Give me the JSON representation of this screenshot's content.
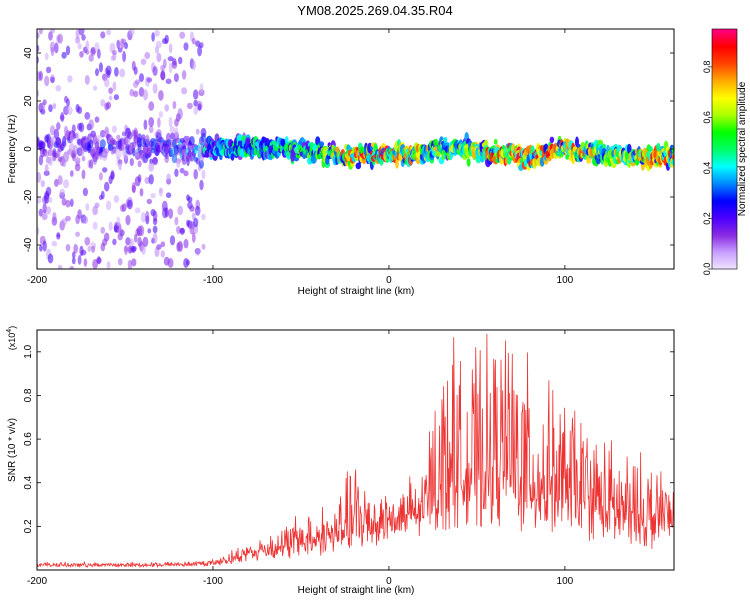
{
  "title": "YM08.2025.269.04.35.R04",
  "chart_data": [
    {
      "type": "heatmap",
      "name": "spectrogram",
      "xlabel": "Height of straight line (km)",
      "ylabel": "Frequency (Hz)",
      "xlim": [
        -200,
        162
      ],
      "ylim": [
        -50,
        50
      ],
      "x_ticks": [
        -200,
        -100,
        0,
        100
      ],
      "x_tick_labels": [
        "-200",
        "-100",
        "0",
        "100"
      ],
      "y_ticks": [
        -40,
        -20,
        0,
        20,
        40
      ],
      "y_tick_labels": [
        "-40",
        "-20",
        "0",
        "20",
        "40"
      ],
      "ridge": {
        "x": [
          -200,
          -150,
          -100,
          -80,
          -60,
          -40,
          -20,
          0,
          20,
          40,
          60,
          80,
          100,
          120,
          140,
          162
        ],
        "frequency": [
          2,
          1,
          0,
          1,
          0,
          -1,
          -3,
          -2,
          -1,
          0,
          -2,
          -3,
          0,
          -2,
          -3,
          -3
        ],
        "amplitude": [
          0.25,
          0.3,
          0.45,
          0.55,
          0.55,
          0.6,
          0.85,
          0.9,
          0.75,
          0.6,
          0.85,
          0.9,
          0.85,
          0.7,
          0.8,
          0.85
        ]
      },
      "colorbar": {
        "label": "Normalized spectral amplitude",
        "range": [
          0,
          0.95
        ],
        "ticks": [
          0.0,
          0.2,
          0.4,
          0.6,
          0.8
        ],
        "tick_labels": [
          "0.0",
          "0.2",
          "0.4",
          "0.6",
          "0.8"
        ],
        "colors": [
          "#f0e6ff",
          "#c9a0ff",
          "#8a2be2",
          "#4b00ff",
          "#0000ff",
          "#0088ff",
          "#00ffff",
          "#00ff66",
          "#00ff00",
          "#aaff00",
          "#ffff00",
          "#ffaa00",
          "#ff4400",
          "#ff0000",
          "#ff0080"
        ]
      }
    },
    {
      "type": "line",
      "name": "snr",
      "xlabel": "Height of straight line (km)",
      "ylabel": "SNR (10 * v/v)",
      "y_scale_label": "(x10",
      "y_scale_exp": "4",
      "y_scale_close": ")",
      "xlim": [
        -200,
        162
      ],
      "ylim": [
        0,
        1.1
      ],
      "x_ticks": [
        -200,
        -100,
        0,
        100
      ],
      "x_tick_labels": [
        "-200",
        "-100",
        "0",
        "100"
      ],
      "y_ticks": [
        0.2,
        0.4,
        0.6,
        0.8,
        1.0
      ],
      "y_tick_labels": [
        "0.2",
        "0.4",
        "0.6",
        "0.8",
        "1.0"
      ],
      "color": "#ee3333",
      "series": [
        {
          "name": "SNR",
          "x": [
            -200,
            -180,
            -160,
            -140,
            -120,
            -110,
            -100,
            -90,
            -80,
            -70,
            -60,
            -50,
            -40,
            -30,
            -20,
            -10,
            0,
            10,
            20,
            25,
            30,
            35,
            40,
            50,
            60,
            70,
            80,
            90,
            100,
            110,
            120,
            130,
            140,
            150,
            160,
            162
          ],
          "base": [
            0.02,
            0.02,
            0.02,
            0.02,
            0.025,
            0.025,
            0.03,
            0.04,
            0.06,
            0.07,
            0.08,
            0.09,
            0.1,
            0.12,
            0.14,
            0.16,
            0.18,
            0.2,
            0.22,
            0.26,
            0.28,
            0.3,
            0.3,
            0.3,
            0.3,
            0.3,
            0.28,
            0.26,
            0.24,
            0.22,
            0.2,
            0.18,
            0.16,
            0.15,
            0.14,
            0.14
          ],
          "peak": [
            0.03,
            0.03,
            0.03,
            0.03,
            0.03,
            0.03,
            0.04,
            0.08,
            0.12,
            0.15,
            0.2,
            0.25,
            0.28,
            0.3,
            0.5,
            0.4,
            0.35,
            0.35,
            0.45,
            0.8,
            0.85,
            1.1,
            0.9,
            0.95,
            1.0,
            1.1,
            0.9,
            0.8,
            0.75,
            0.7,
            0.6,
            0.55,
            0.5,
            0.5,
            0.45,
            0.45
          ]
        }
      ]
    }
  ]
}
